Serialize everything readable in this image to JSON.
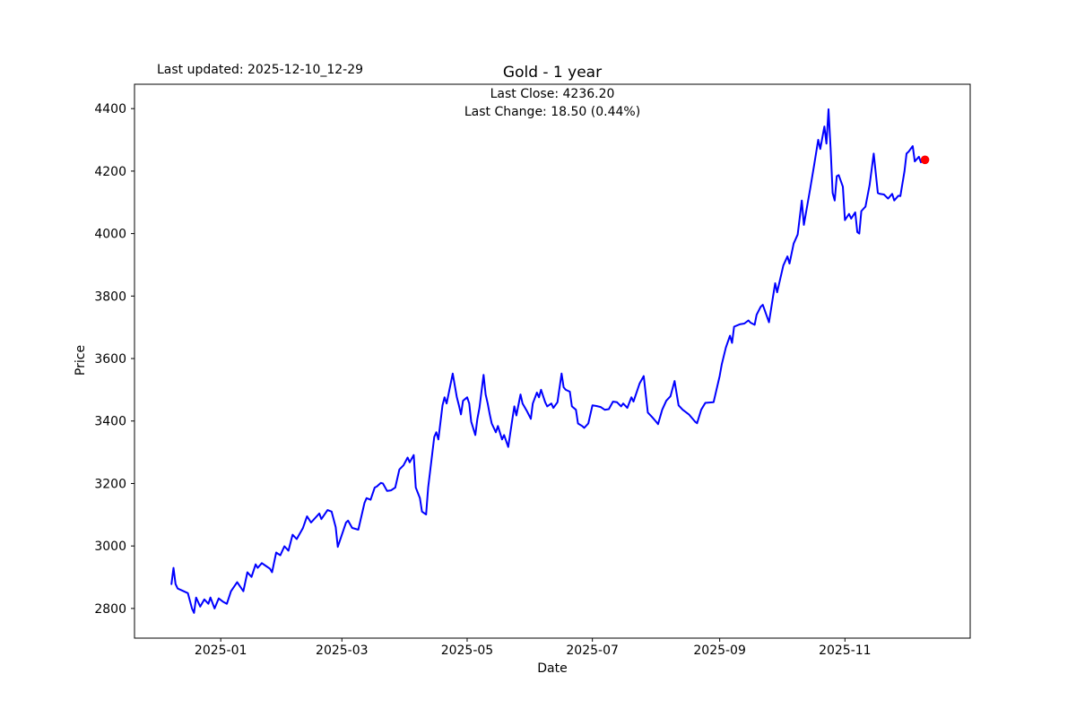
{
  "header": {
    "last_updated": "Last updated: 2025-12-10_12-29",
    "title": "Gold - 1 year",
    "last_close": "Last Close: 4236.20",
    "last_change": "Last Change: 18.50 (0.44%)"
  },
  "chart_data": {
    "type": "line",
    "title": "Gold - 1 year",
    "xlabel": "Date",
    "ylabel": "Price",
    "grid": false,
    "legend": null,
    "background_color": "#ffffff",
    "axis_color": "#000000",
    "ylim": [
      2705,
      4478
    ],
    "xlim": [
      "2024-11-20",
      "2026-01-01"
    ],
    "y_ticks": [
      2800,
      3000,
      3200,
      3400,
      3600,
      3800,
      4000,
      4200,
      4400
    ],
    "x_ticks": [
      {
        "label": "2025-01",
        "date": "2025-01-01"
      },
      {
        "label": "2025-03",
        "date": "2025-03-01"
      },
      {
        "label": "2025-05",
        "date": "2025-05-01"
      },
      {
        "label": "2025-07",
        "date": "2025-07-01"
      },
      {
        "label": "2025-09",
        "date": "2025-09-01"
      },
      {
        "label": "2025-11",
        "date": "2025-11-01"
      }
    ],
    "last_close_value": 4236.2,
    "last_change_value": 18.5,
    "last_change_pct": 0.44,
    "marker": {
      "date": "2025-12-10",
      "value": 4236.2,
      "color": "#ff0000"
    },
    "series": [
      {
        "name": "Gold",
        "color": "#0000ff",
        "points": [
          [
            "2024-12-08",
            2878
          ],
          [
            "2024-12-09",
            2930
          ],
          [
            "2024-12-10",
            2878
          ],
          [
            "2024-12-11",
            2864
          ],
          [
            "2024-12-13",
            2858
          ],
          [
            "2024-12-16",
            2849
          ],
          [
            "2024-12-18",
            2800
          ],
          [
            "2024-12-19",
            2786
          ],
          [
            "2024-12-20",
            2835
          ],
          [
            "2024-12-22",
            2806
          ],
          [
            "2024-12-24",
            2829
          ],
          [
            "2024-12-26",
            2815
          ],
          [
            "2024-12-27",
            2835
          ],
          [
            "2024-12-29",
            2800
          ],
          [
            "2024-12-31",
            2832
          ],
          [
            "2025-01-02",
            2822
          ],
          [
            "2025-01-04",
            2815
          ],
          [
            "2025-01-06",
            2855
          ],
          [
            "2025-01-09",
            2884
          ],
          [
            "2025-01-12",
            2855
          ],
          [
            "2025-01-14",
            2916
          ],
          [
            "2025-01-16",
            2901
          ],
          [
            "2025-01-18",
            2941
          ],
          [
            "2025-01-19",
            2930
          ],
          [
            "2025-01-21",
            2945
          ],
          [
            "2025-01-23",
            2936
          ],
          [
            "2025-01-25",
            2927
          ],
          [
            "2025-01-26",
            2916
          ],
          [
            "2025-01-28",
            2979
          ],
          [
            "2025-01-30",
            2970
          ],
          [
            "2025-02-01",
            2999
          ],
          [
            "2025-02-03",
            2985
          ],
          [
            "2025-02-05",
            3036
          ],
          [
            "2025-02-07",
            3022
          ],
          [
            "2025-02-10",
            3057
          ],
          [
            "2025-02-12",
            3095
          ],
          [
            "2025-02-14",
            3075
          ],
          [
            "2025-02-18",
            3104
          ],
          [
            "2025-02-19",
            3086
          ],
          [
            "2025-02-22",
            3115
          ],
          [
            "2025-02-24",
            3110
          ],
          [
            "2025-02-26",
            3060
          ],
          [
            "2025-02-27",
            2997
          ],
          [
            "2025-03-01",
            3036
          ],
          [
            "2025-03-03",
            3075
          ],
          [
            "2025-03-04",
            3081
          ],
          [
            "2025-03-06",
            3058
          ],
          [
            "2025-03-09",
            3052
          ],
          [
            "2025-03-12",
            3138
          ],
          [
            "2025-03-13",
            3153
          ],
          [
            "2025-03-15",
            3148
          ],
          [
            "2025-03-17",
            3187
          ],
          [
            "2025-03-18",
            3190
          ],
          [
            "2025-03-20",
            3202
          ],
          [
            "2025-03-21",
            3200
          ],
          [
            "2025-03-23",
            3176
          ],
          [
            "2025-03-25",
            3178
          ],
          [
            "2025-03-27",
            3187
          ],
          [
            "2025-03-29",
            3245
          ],
          [
            "2025-03-31",
            3258
          ],
          [
            "2025-04-02",
            3283
          ],
          [
            "2025-04-03",
            3268
          ],
          [
            "2025-04-05",
            3291
          ],
          [
            "2025-04-06",
            3187
          ],
          [
            "2025-04-08",
            3153
          ],
          [
            "2025-04-09",
            3110
          ],
          [
            "2025-04-11",
            3101
          ],
          [
            "2025-04-12",
            3187
          ],
          [
            "2025-04-15",
            3349
          ],
          [
            "2025-04-16",
            3364
          ],
          [
            "2025-04-17",
            3341
          ],
          [
            "2025-04-19",
            3450
          ],
          [
            "2025-04-20",
            3476
          ],
          [
            "2025-04-21",
            3456
          ],
          [
            "2025-04-24",
            3552
          ],
          [
            "2025-04-26",
            3476
          ],
          [
            "2025-04-27",
            3450
          ],
          [
            "2025-04-28",
            3421
          ],
          [
            "2025-04-29",
            3465
          ],
          [
            "2025-05-01",
            3476
          ],
          [
            "2025-05-02",
            3456
          ],
          [
            "2025-05-03",
            3398
          ],
          [
            "2025-05-05",
            3355
          ],
          [
            "2025-05-06",
            3407
          ],
          [
            "2025-05-07",
            3442
          ],
          [
            "2025-05-09",
            3548
          ],
          [
            "2025-05-10",
            3485
          ],
          [
            "2025-05-11",
            3456
          ],
          [
            "2025-05-12",
            3421
          ],
          [
            "2025-05-13",
            3392
          ],
          [
            "2025-05-15",
            3364
          ],
          [
            "2025-05-16",
            3384
          ],
          [
            "2025-05-18",
            3341
          ],
          [
            "2025-05-19",
            3355
          ],
          [
            "2025-05-21",
            3317
          ],
          [
            "2025-05-23",
            3404
          ],
          [
            "2025-05-24",
            3447
          ],
          [
            "2025-05-25",
            3418
          ],
          [
            "2025-05-27",
            3485
          ],
          [
            "2025-05-28",
            3456
          ],
          [
            "2025-05-30",
            3433
          ],
          [
            "2025-06-01",
            3407
          ],
          [
            "2025-06-02",
            3456
          ],
          [
            "2025-06-04",
            3491
          ],
          [
            "2025-06-05",
            3476
          ],
          [
            "2025-06-06",
            3500
          ],
          [
            "2025-06-08",
            3460
          ],
          [
            "2025-06-09",
            3447
          ],
          [
            "2025-06-11",
            3456
          ],
          [
            "2025-06-12",
            3442
          ],
          [
            "2025-06-14",
            3460
          ],
          [
            "2025-06-16",
            3552
          ],
          [
            "2025-06-17",
            3508
          ],
          [
            "2025-06-18",
            3500
          ],
          [
            "2025-06-20",
            3494
          ],
          [
            "2025-06-21",
            3447
          ],
          [
            "2025-06-23",
            3436
          ],
          [
            "2025-06-24",
            3392
          ],
          [
            "2025-06-26",
            3384
          ],
          [
            "2025-06-27",
            3378
          ],
          [
            "2025-06-29",
            3392
          ],
          [
            "2025-07-01",
            3450
          ],
          [
            "2025-07-03",
            3448
          ],
          [
            "2025-07-05",
            3445
          ],
          [
            "2025-07-07",
            3436
          ],
          [
            "2025-07-09",
            3438
          ],
          [
            "2025-07-11",
            3462
          ],
          [
            "2025-07-13",
            3460
          ],
          [
            "2025-07-15",
            3447
          ],
          [
            "2025-07-16",
            3456
          ],
          [
            "2025-07-18",
            3442
          ],
          [
            "2025-07-20",
            3476
          ],
          [
            "2025-07-21",
            3462
          ],
          [
            "2025-07-24",
            3520
          ],
          [
            "2025-07-26",
            3544
          ],
          [
            "2025-07-28",
            3427
          ],
          [
            "2025-07-30",
            3413
          ],
          [
            "2025-08-01",
            3398
          ],
          [
            "2025-08-02",
            3390
          ],
          [
            "2025-08-04",
            3436
          ],
          [
            "2025-08-06",
            3465
          ],
          [
            "2025-08-08",
            3479
          ],
          [
            "2025-08-10",
            3528
          ],
          [
            "2025-08-12",
            3450
          ],
          [
            "2025-08-14",
            3436
          ],
          [
            "2025-08-17",
            3421
          ],
          [
            "2025-08-20",
            3398
          ],
          [
            "2025-08-21",
            3393
          ],
          [
            "2025-08-23",
            3436
          ],
          [
            "2025-08-25",
            3458
          ],
          [
            "2025-08-29",
            3460
          ],
          [
            "2025-09-01",
            3544
          ],
          [
            "2025-09-02",
            3581
          ],
          [
            "2025-09-04",
            3635
          ],
          [
            "2025-09-06",
            3673
          ],
          [
            "2025-09-07",
            3650
          ],
          [
            "2025-09-08",
            3702
          ],
          [
            "2025-09-11",
            3710
          ],
          [
            "2025-09-13",
            3712
          ],
          [
            "2025-09-15",
            3722
          ],
          [
            "2025-09-16",
            3715
          ],
          [
            "2025-09-18",
            3708
          ],
          [
            "2025-09-19",
            3740
          ],
          [
            "2025-09-21",
            3766
          ],
          [
            "2025-09-22",
            3772
          ],
          [
            "2025-09-25",
            3716
          ],
          [
            "2025-09-27",
            3800
          ],
          [
            "2025-09-28",
            3841
          ],
          [
            "2025-09-29",
            3812
          ],
          [
            "2025-10-02",
            3898
          ],
          [
            "2025-10-04",
            3927
          ],
          [
            "2025-10-05",
            3904
          ],
          [
            "2025-10-07",
            3968
          ],
          [
            "2025-10-09",
            3997
          ],
          [
            "2025-10-11",
            4106
          ],
          [
            "2025-10-12",
            4028
          ],
          [
            "2025-10-15",
            4141
          ],
          [
            "2025-10-17",
            4220
          ],
          [
            "2025-10-19",
            4300
          ],
          [
            "2025-10-20",
            4271
          ],
          [
            "2025-10-22",
            4343
          ],
          [
            "2025-10-23",
            4288
          ],
          [
            "2025-10-24",
            4398
          ],
          [
            "2025-10-25",
            4274
          ],
          [
            "2025-10-26",
            4130
          ],
          [
            "2025-10-27",
            4106
          ],
          [
            "2025-10-28",
            4184
          ],
          [
            "2025-10-29",
            4187
          ],
          [
            "2025-10-31",
            4150
          ],
          [
            "2025-11-01",
            4043
          ],
          [
            "2025-11-03",
            4063
          ],
          [
            "2025-11-04",
            4048
          ],
          [
            "2025-11-06",
            4068
          ],
          [
            "2025-11-07",
            4005
          ],
          [
            "2025-11-08",
            4000
          ],
          [
            "2025-11-09",
            4072
          ],
          [
            "2025-11-11",
            4086
          ],
          [
            "2025-11-13",
            4155
          ],
          [
            "2025-11-15",
            4256
          ],
          [
            "2025-11-17",
            4130
          ],
          [
            "2025-11-18",
            4127
          ],
          [
            "2025-11-20",
            4125
          ],
          [
            "2025-11-22",
            4112
          ],
          [
            "2025-11-24",
            4127
          ],
          [
            "2025-11-25",
            4106
          ],
          [
            "2025-11-27",
            4121
          ],
          [
            "2025-11-28",
            4120
          ],
          [
            "2025-11-30",
            4199
          ],
          [
            "2025-12-01",
            4256
          ],
          [
            "2025-12-02",
            4262
          ],
          [
            "2025-12-04",
            4280
          ],
          [
            "2025-12-05",
            4231
          ],
          [
            "2025-12-07",
            4246
          ],
          [
            "2025-12-08",
            4228
          ],
          [
            "2025-12-09",
            4242
          ],
          [
            "2025-12-10",
            4236.2
          ]
        ]
      }
    ]
  }
}
